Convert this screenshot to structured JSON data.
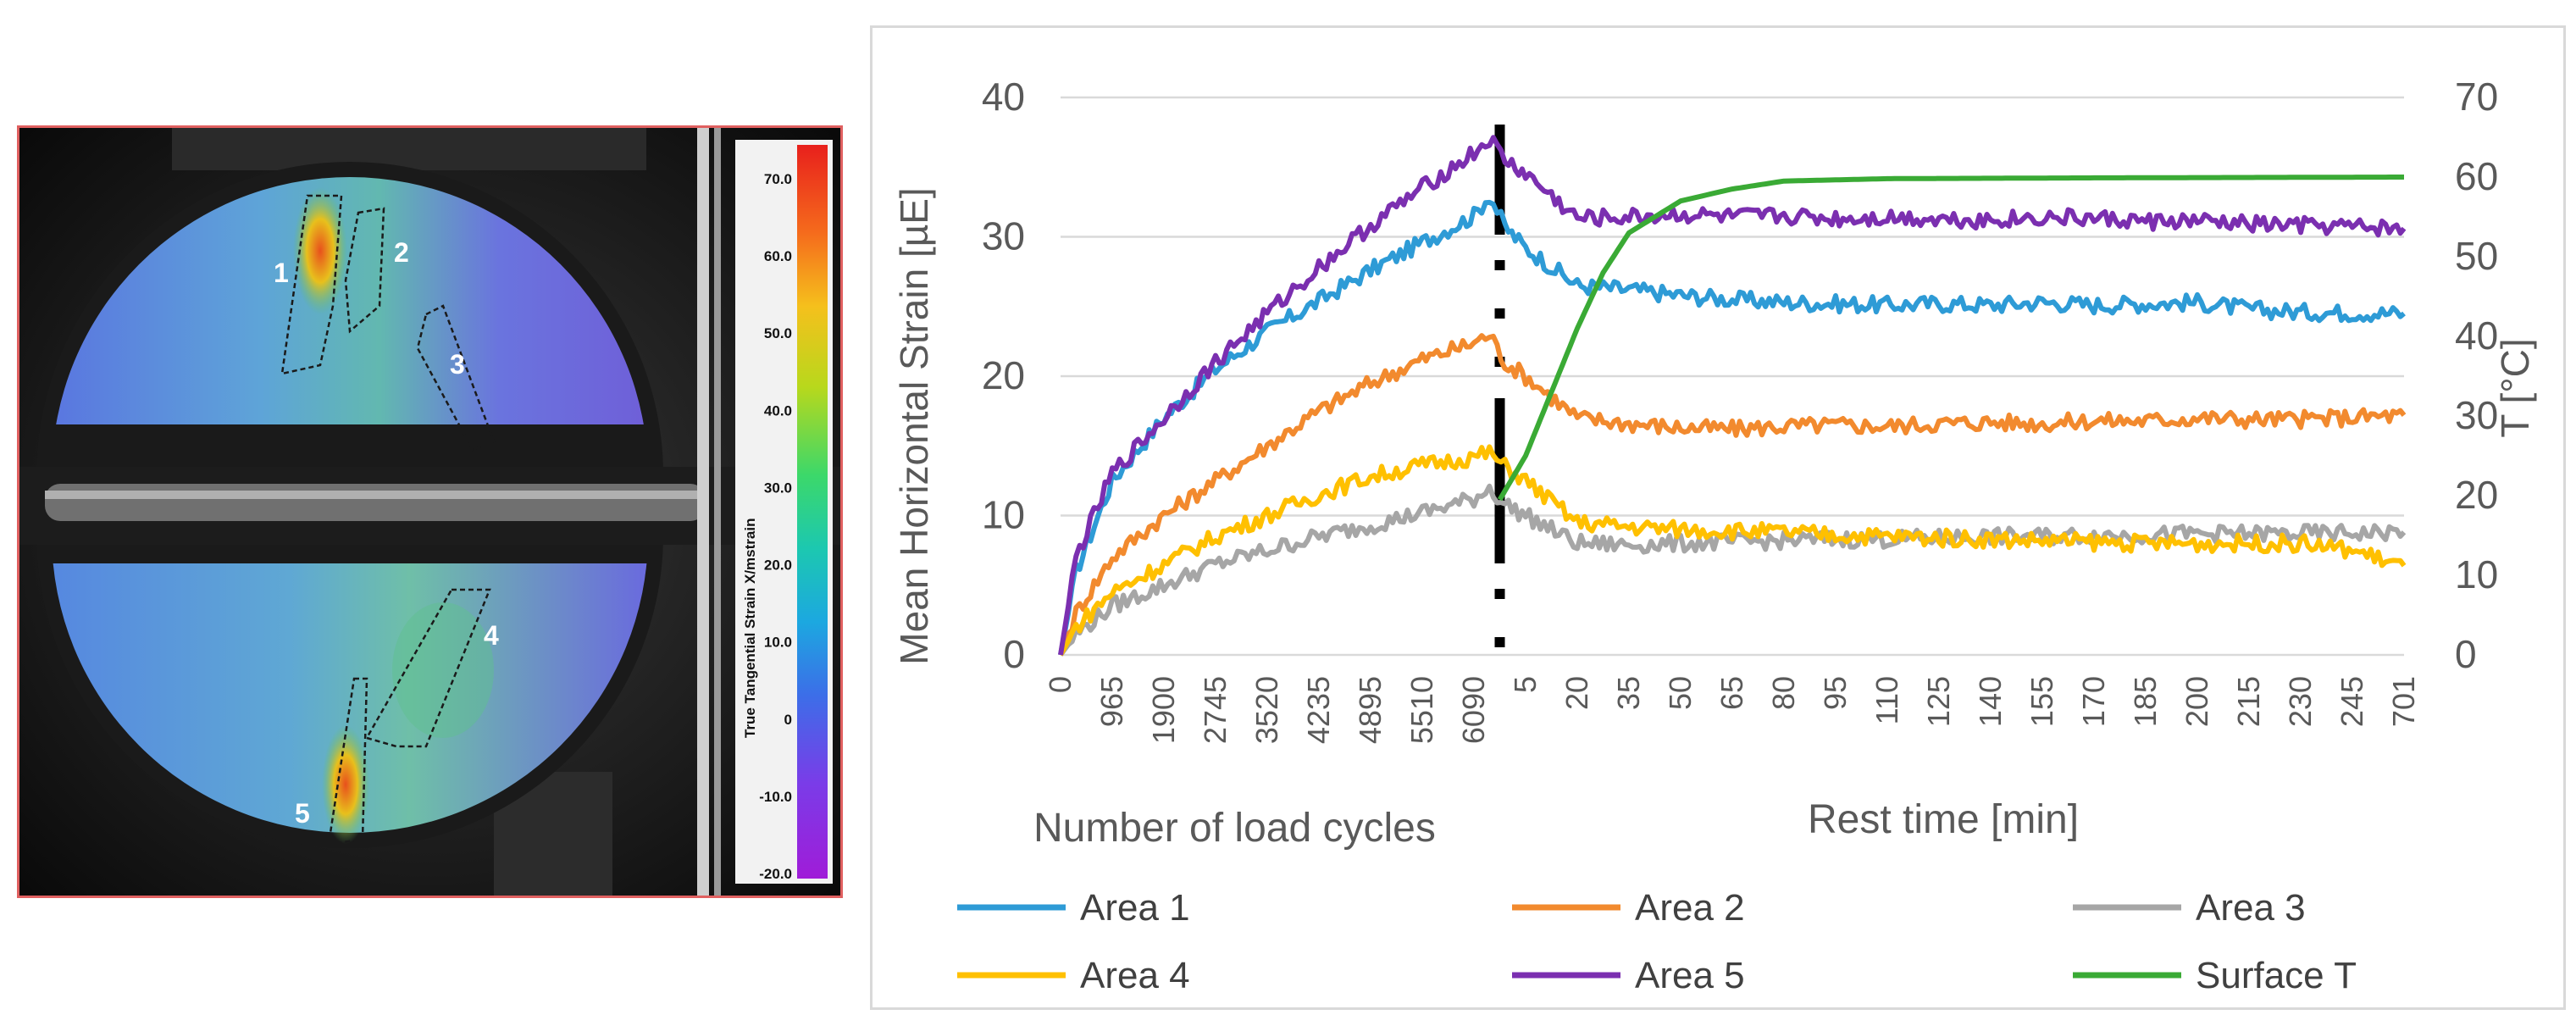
{
  "specimen_image": {
    "colorbar_label": "True Tangential Strain X/mstrain",
    "colorbar_ticks": [
      "70.0",
      "60.0",
      "50.0",
      "40.0",
      "30.0",
      "20.0",
      "10.0",
      "0",
      "-10.0",
      "-20.0"
    ],
    "area_labels": [
      "1",
      "2",
      "3",
      "4",
      "5"
    ]
  },
  "chart_data": {
    "type": "line",
    "ylabel": "Mean Horizontal Strain [µE]",
    "y2label": "T [°C]",
    "xlabel_left": "Number of load cycles",
    "xlabel_right": "Rest time [min]",
    "ylim": [
      0,
      40
    ],
    "y_ticks": [
      "0",
      "10",
      "20",
      "30",
      "40"
    ],
    "y2lim": [
      0,
      70
    ],
    "y2_ticks": [
      "0",
      "10",
      "20",
      "30",
      "40",
      "50",
      "60",
      "70"
    ],
    "x_ticks_cycles": [
      "0",
      "965",
      "1900",
      "2745",
      "3520",
      "4235",
      "4895",
      "5510",
      "6090"
    ],
    "x_ticks_rest": [
      "5",
      "20",
      "35",
      "50",
      "65",
      "80",
      "95",
      "110",
      "125",
      "140",
      "155",
      "170",
      "185",
      "200",
      "215",
      "230",
      "245",
      "701"
    ],
    "x_ticks_all": [
      "0",
      "965",
      "1900",
      "2745",
      "3520",
      "4235",
      "4895",
      "5510",
      "6090",
      "5",
      "20",
      "35",
      "50",
      "65",
      "80",
      "95",
      "110",
      "125",
      "140",
      "155",
      "170",
      "185",
      "200",
      "215",
      "230",
      "245",
      "701"
    ],
    "grid": true,
    "series": [
      {
        "name": "Area 1",
        "color": "#2e9bd6",
        "axis": "left",
        "points": [
          [
            0,
            0
          ],
          [
            0.3,
            6
          ],
          [
            1,
            12.5
          ],
          [
            2,
            17
          ],
          [
            3,
            20.5
          ],
          [
            4,
            23.2
          ],
          [
            5,
            25.4
          ],
          [
            6,
            27.6
          ],
          [
            7,
            29.6
          ],
          [
            8,
            31.5
          ],
          [
            8.3,
            33
          ],
          [
            8.6,
            30.7
          ],
          [
            9,
            29.2
          ],
          [
            10,
            26.5
          ],
          [
            11,
            26.2
          ],
          [
            12,
            25.8
          ],
          [
            13,
            25.5
          ],
          [
            14,
            25.3
          ],
          [
            15,
            25.2
          ],
          [
            16,
            25.1
          ],
          [
            17,
            25.2
          ],
          [
            18,
            25.1
          ],
          [
            19,
            25.3
          ],
          [
            20,
            25.1
          ],
          [
            21,
            25.2
          ],
          [
            22,
            25.3
          ],
          [
            23,
            24.8
          ],
          [
            24,
            24.6
          ],
          [
            26,
            24.5
          ]
        ]
      },
      {
        "name": "Area 2",
        "color": "#f28a2e",
        "axis": "left",
        "points": [
          [
            0,
            0
          ],
          [
            0.3,
            3
          ],
          [
            1,
            7
          ],
          [
            2,
            10
          ],
          [
            3,
            12.5
          ],
          [
            4,
            15
          ],
          [
            5,
            17.5
          ],
          [
            6,
            19.5
          ],
          [
            7,
            21.2
          ],
          [
            8,
            22.4
          ],
          [
            8.3,
            23
          ],
          [
            8.6,
            21
          ],
          [
            9,
            20
          ],
          [
            10,
            17
          ],
          [
            11,
            16.6
          ],
          [
            12,
            16.3
          ],
          [
            13,
            16.2
          ],
          [
            14,
            16.4
          ],
          [
            15,
            16.5
          ],
          [
            16,
            16.4
          ],
          [
            17,
            16.6
          ],
          [
            18,
            16.7
          ],
          [
            19,
            16.6
          ],
          [
            20,
            16.8
          ],
          [
            21,
            16.8
          ],
          [
            22,
            17
          ],
          [
            23,
            16.9
          ],
          [
            24,
            16.9
          ],
          [
            26,
            17.2
          ]
        ]
      },
      {
        "name": "Area 3",
        "color": "#a6a6a6",
        "axis": "left",
        "points": [
          [
            0,
            0
          ],
          [
            0.3,
            1.5
          ],
          [
            1,
            3.5
          ],
          [
            2,
            5
          ],
          [
            3,
            6.5
          ],
          [
            4,
            7.5
          ],
          [
            5,
            8.5
          ],
          [
            6,
            9.3
          ],
          [
            7,
            10.2
          ],
          [
            8,
            11.2
          ],
          [
            8.3,
            12
          ],
          [
            8.6,
            10.8
          ],
          [
            9,
            10
          ],
          [
            10,
            8
          ],
          [
            11,
            7.9
          ],
          [
            12,
            8
          ],
          [
            13,
            8.1
          ],
          [
            14,
            8.2
          ],
          [
            15,
            8.3
          ],
          [
            16,
            8.3
          ],
          [
            17,
            8.4
          ],
          [
            18,
            8.5
          ],
          [
            19,
            8.5
          ],
          [
            20,
            8.6
          ],
          [
            21,
            8.6
          ],
          [
            22,
            8.7
          ],
          [
            23,
            8.7
          ],
          [
            24,
            8.7
          ],
          [
            26,
            8.8
          ]
        ]
      },
      {
        "name": "Area 4",
        "color": "#ffc000",
        "axis": "left",
        "points": [
          [
            0,
            0
          ],
          [
            0.3,
            2
          ],
          [
            1,
            4.5
          ],
          [
            2,
            6.5
          ],
          [
            3,
            8.5
          ],
          [
            4,
            10
          ],
          [
            5,
            11.5
          ],
          [
            6,
            12.8
          ],
          [
            7,
            13.6
          ],
          [
            8,
            14.2
          ],
          [
            8.3,
            14.5
          ],
          [
            8.6,
            13.5
          ],
          [
            9,
            12.5
          ],
          [
            10,
            9.5
          ],
          [
            11,
            9.2
          ],
          [
            12,
            9
          ],
          [
            13,
            8.9
          ],
          [
            14,
            8.8
          ],
          [
            15,
            8.6
          ],
          [
            16,
            8.5
          ],
          [
            17,
            8.4
          ],
          [
            18,
            8.3
          ],
          [
            19,
            8.2
          ],
          [
            20,
            8.1
          ],
          [
            21,
            8
          ],
          [
            22,
            8
          ],
          [
            23,
            8
          ],
          [
            24,
            8
          ],
          [
            25,
            7.5
          ],
          [
            26,
            6.4
          ]
        ]
      },
      {
        "name": "Area 5",
        "color": "#7b2fb0",
        "axis": "left",
        "points": [
          [
            0,
            0
          ],
          [
            0.3,
            7
          ],
          [
            1,
            13
          ],
          [
            2,
            17
          ],
          [
            3,
            21
          ],
          [
            4,
            24.5
          ],
          [
            5,
            27.8
          ],
          [
            6,
            30.8
          ],
          [
            7,
            33.5
          ],
          [
            8,
            36
          ],
          [
            8.3,
            37
          ],
          [
            8.6,
            35.5
          ],
          [
            9,
            34.5
          ],
          [
            10,
            31.3
          ],
          [
            11,
            31.4
          ],
          [
            12,
            31.6
          ],
          [
            13,
            31.4
          ],
          [
            14,
            31.5
          ],
          [
            15,
            31.3
          ],
          [
            16,
            31.4
          ],
          [
            17,
            31.3
          ],
          [
            18,
            31.2
          ],
          [
            19,
            31.4
          ],
          [
            20,
            31.3
          ],
          [
            21,
            31.1
          ],
          [
            22,
            31.1
          ],
          [
            23,
            30.9
          ],
          [
            24,
            30.8
          ],
          [
            26,
            30.6
          ]
        ]
      },
      {
        "name": "Surface T",
        "color": "#3aaa35",
        "axis": "right",
        "points": [
          [
            8.5,
            19.5
          ],
          [
            9,
            25
          ],
          [
            9.5,
            33
          ],
          [
            10,
            41
          ],
          [
            10.5,
            48
          ],
          [
            11,
            53
          ],
          [
            12,
            57
          ],
          [
            13,
            58.5
          ],
          [
            14,
            59.5
          ],
          [
            16,
            59.8
          ],
          [
            20,
            59.9
          ],
          [
            26,
            60
          ]
        ]
      }
    ]
  },
  "legend": [
    {
      "label": "Area 1",
      "color": "#2e9bd6"
    },
    {
      "label": "Area 2",
      "color": "#f28a2e"
    },
    {
      "label": "Area 3",
      "color": "#a6a6a6"
    },
    {
      "label": "Area 4",
      "color": "#ffc000"
    },
    {
      "label": "Area 5",
      "color": "#7b2fb0"
    },
    {
      "label": "Surface T",
      "color": "#3aaa35"
    }
  ]
}
